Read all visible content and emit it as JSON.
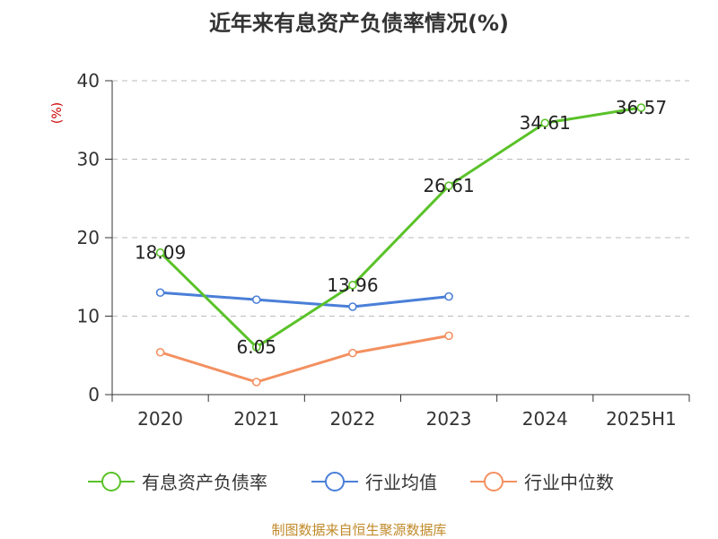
{
  "chart_data": {
    "type": "line",
    "title": "近年来有息资产负债率情况(%)",
    "xlabel": "",
    "ylabel": "(%)",
    "categories": [
      "2020",
      "2021",
      "2022",
      "2023",
      "2024",
      "2025H1"
    ],
    "ylim": [
      0,
      40
    ],
    "yticks": [
      0,
      10,
      20,
      30,
      40
    ],
    "grid": true,
    "legend_position": "bottom",
    "series": [
      {
        "name": "有息资产负债率",
        "color": "#5ac229",
        "values": [
          18.09,
          6.05,
          13.96,
          26.61,
          34.61,
          36.57
        ],
        "labels": [
          "18.09",
          "6.05",
          "13.96",
          "26.61",
          "34.61",
          "36.57"
        ]
      },
      {
        "name": "行业均值",
        "color": "#4a7fd8",
        "values": [
          13.0,
          12.1,
          11.2,
          12.5,
          null,
          null
        ]
      },
      {
        "name": "行业中位数",
        "color": "#f39060",
        "values": [
          5.4,
          1.6,
          5.3,
          7.5,
          null,
          null
        ]
      }
    ]
  },
  "footer": {
    "source": "制图数据来自恒生聚源数据库"
  }
}
